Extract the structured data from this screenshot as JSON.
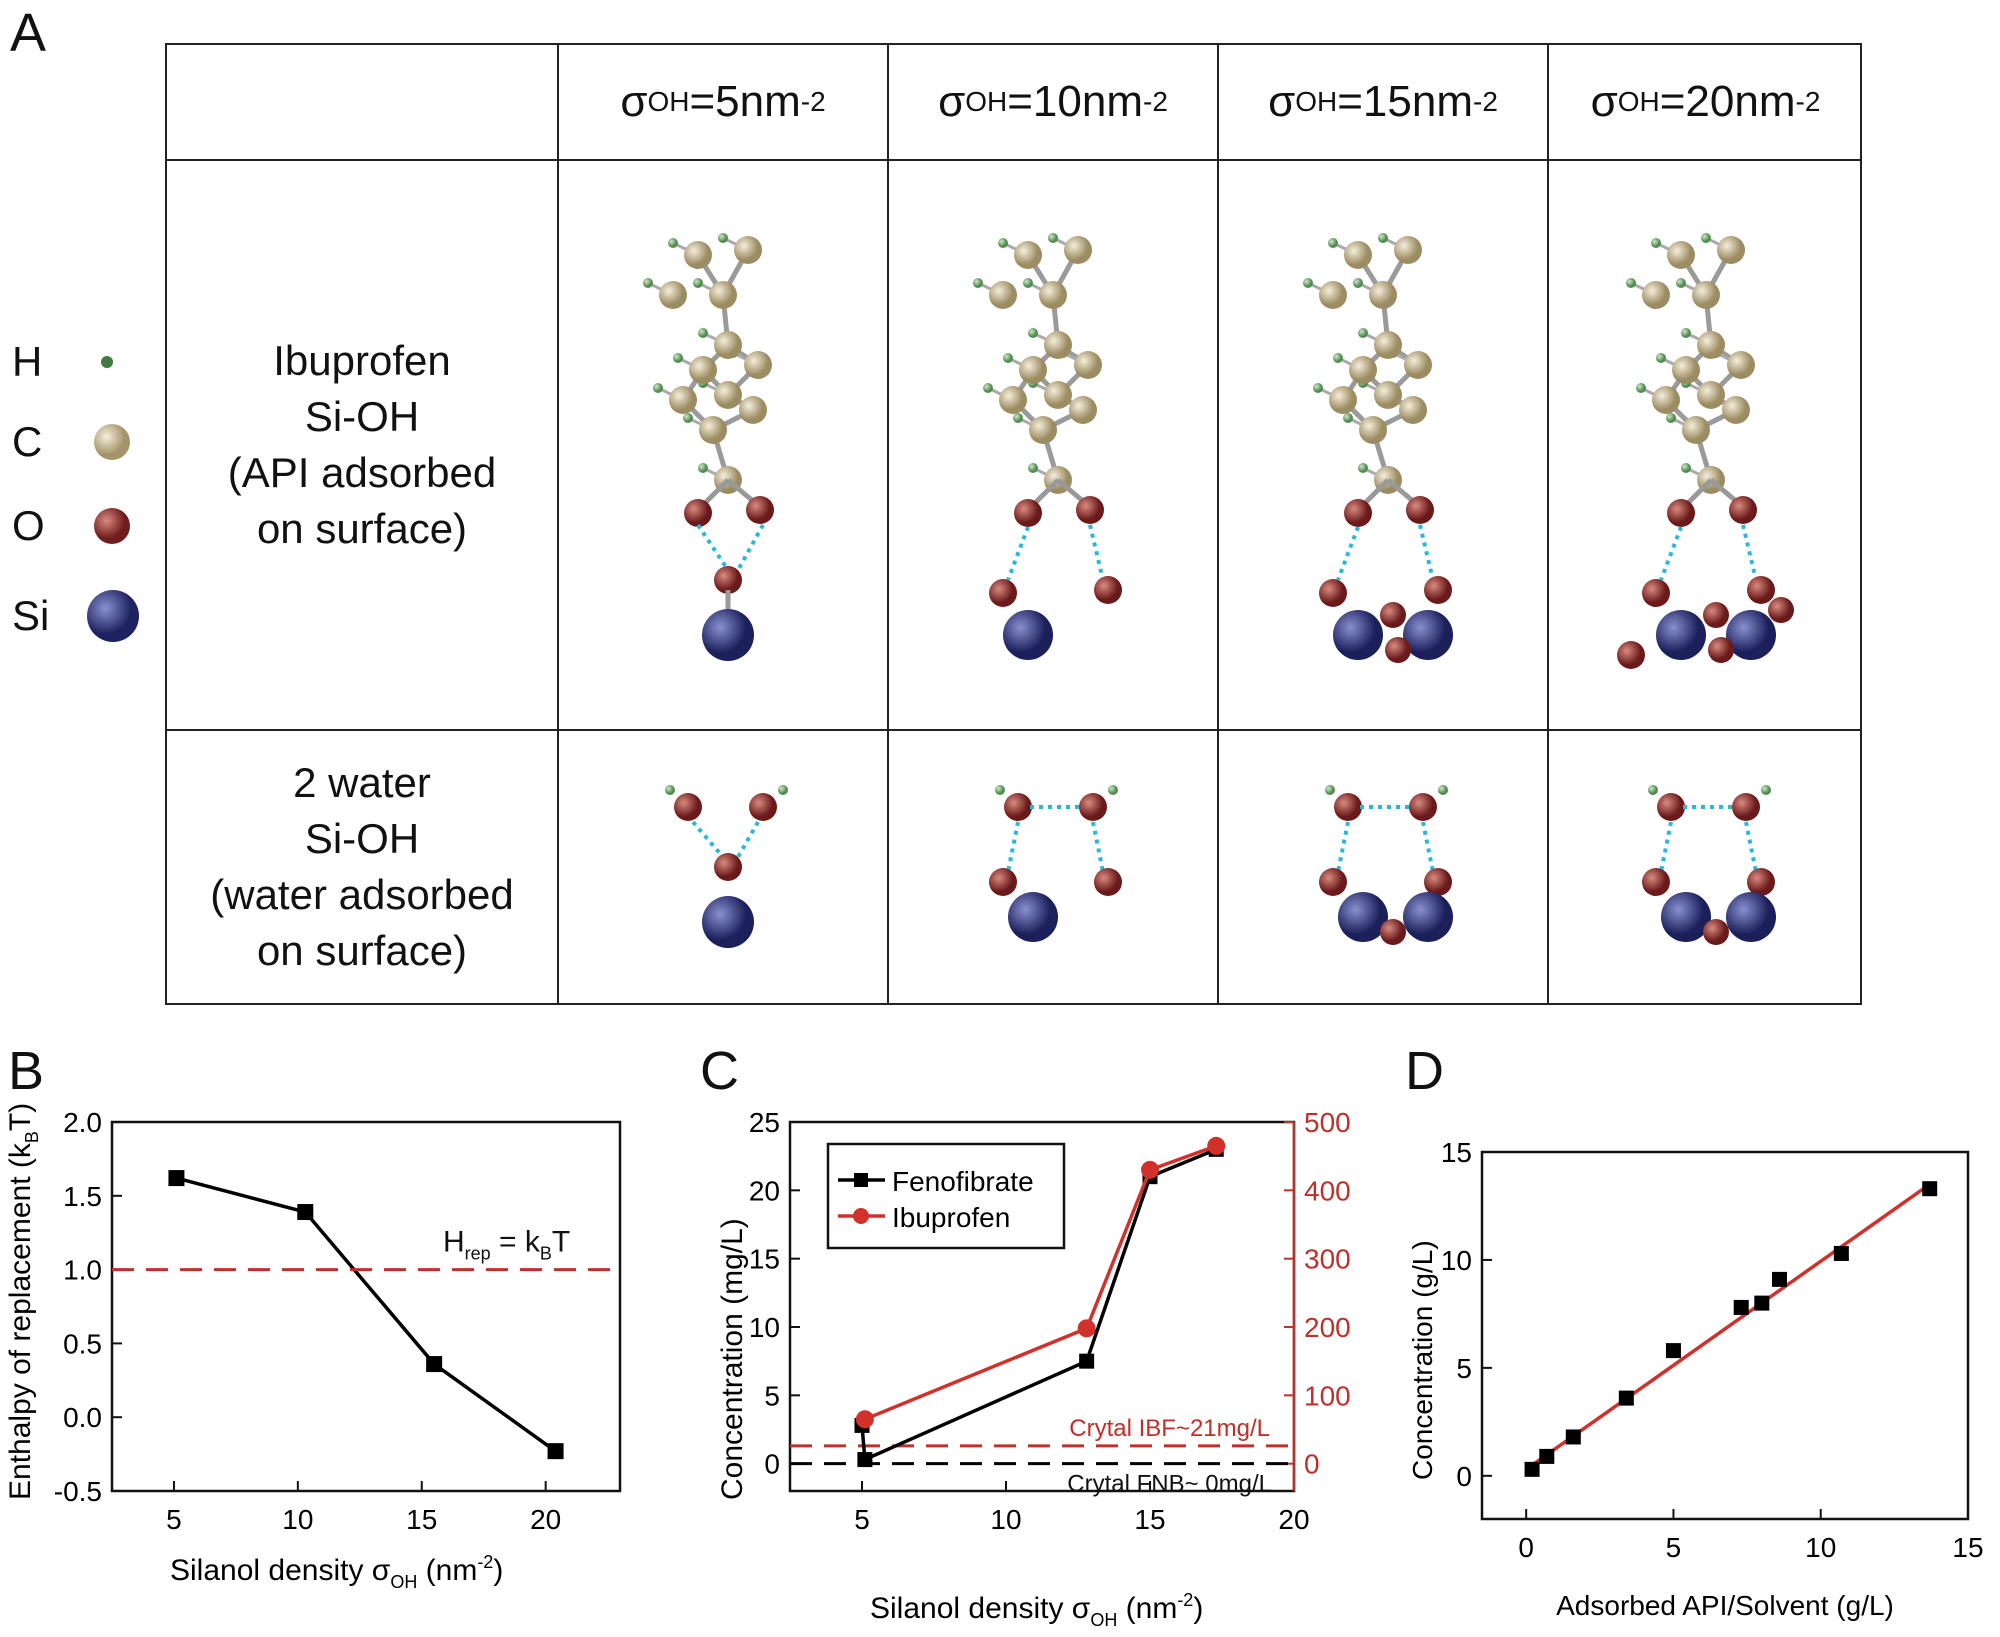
{
  "panel_labels": {
    "a": "A",
    "b": "B",
    "c": "C",
    "d": "D"
  },
  "legend": [
    {
      "symbol": "H",
      "color": "#3f7a3f",
      "r": 6
    },
    {
      "symbol": "C",
      "color": "#c2b48a",
      "r": 18
    },
    {
      "symbol": "O",
      "color": "#8b2a2a",
      "r": 18
    },
    {
      "symbol": "Si",
      "color": "#2a2f6e",
      "r": 26
    }
  ],
  "table": {
    "col_prefix": "σ",
    "col_sub": "OH",
    "col_unit": "nm",
    "col_exp": "-2",
    "columns": [
      "=5",
      "=10",
      "=15",
      "=20"
    ],
    "row1_label": "Ibuprofen\nSi-OH\n(API adsorbed\non surface)",
    "row2_label": "2 water\nSi-OH\n(water adsorbed\non surface)"
  },
  "chart_data": [
    {
      "id": "B",
      "type": "line",
      "xlabel": "Silanol density σOH (nm-2)",
      "ylabel": "Enthalpy of replacement (kBT)",
      "xlim": [
        2.5,
        23
      ],
      "ylim": [
        -0.5,
        2.0
      ],
      "xticks": [
        5,
        10,
        15,
        20
      ],
      "yticks": [
        -0.5,
        0.0,
        0.5,
        1.0,
        1.5,
        2.0
      ],
      "ytick_labels": [
        "-0.5",
        "0.0",
        "0.5",
        "1.0",
        "1.5",
        "2.0"
      ],
      "series": [
        {
          "x": [
            5.1,
            10.3,
            15.5,
            20.4
          ],
          "y": [
            1.62,
            1.39,
            0.36,
            -0.23
          ],
          "color": "#000000",
          "marker": "square"
        }
      ],
      "hline": {
        "y": 1.0,
        "color": "#c0302b",
        "label": "Hrep = kBT"
      }
    },
    {
      "id": "C",
      "type": "line",
      "xlabel": "Silanol density σOH (nm-2)",
      "ylabel": "Concentration (mg/L)",
      "xlim": [
        2.5,
        20
      ],
      "ylim": [
        -2,
        25
      ],
      "ylim_right": [
        -40,
        500
      ],
      "xticks": [
        5,
        10,
        15,
        20
      ],
      "yticks": [
        0,
        5,
        10,
        15,
        20,
        25
      ],
      "yticks_right": [
        0,
        100,
        200,
        300,
        400,
        500
      ],
      "series": [
        {
          "name": "Fenofibrate",
          "axis": "left",
          "x": [
            5.0,
            5.1,
            12.8,
            15.0,
            17.3
          ],
          "y": [
            2.8,
            0.3,
            7.5,
            21.0,
            23.0
          ],
          "color": "#000000",
          "marker": "square"
        },
        {
          "name": "Ibuprofen",
          "axis": "right",
          "x": [
            5.1,
            12.8,
            15.0,
            17.3
          ],
          "y": [
            65,
            198,
            430,
            465
          ],
          "color": "#d2312b",
          "marker": "circle"
        }
      ],
      "hlines": [
        {
          "y": 1.3,
          "color": "#c0302b",
          "label": "Crytal IBF~21mg/L"
        },
        {
          "y": 0.0,
          "color": "#000000",
          "label": "Crytal FNB~ 0mg/L"
        }
      ]
    },
    {
      "id": "D",
      "type": "scatter",
      "xlabel": "Adsorbed API/Solvent (g/L)",
      "ylabel": "Concentration (g/L)",
      "xlim": [
        -1.5,
        15
      ],
      "ylim": [
        -2,
        15
      ],
      "xticks": [
        0,
        5,
        10,
        15
      ],
      "yticks": [
        0,
        5,
        10,
        15
      ],
      "points": {
        "x": [
          0.2,
          0.7,
          1.6,
          3.4,
          5.0,
          7.3,
          8.0,
          8.6,
          10.7,
          13.7
        ],
        "y": [
          0.3,
          0.9,
          1.8,
          3.6,
          5.8,
          7.8,
          8.0,
          9.1,
          10.3,
          13.3
        ]
      },
      "fit": {
        "x": [
          0,
          13.8
        ],
        "y": [
          0.3,
          13.6
        ],
        "color": "#d2312b"
      }
    }
  ]
}
